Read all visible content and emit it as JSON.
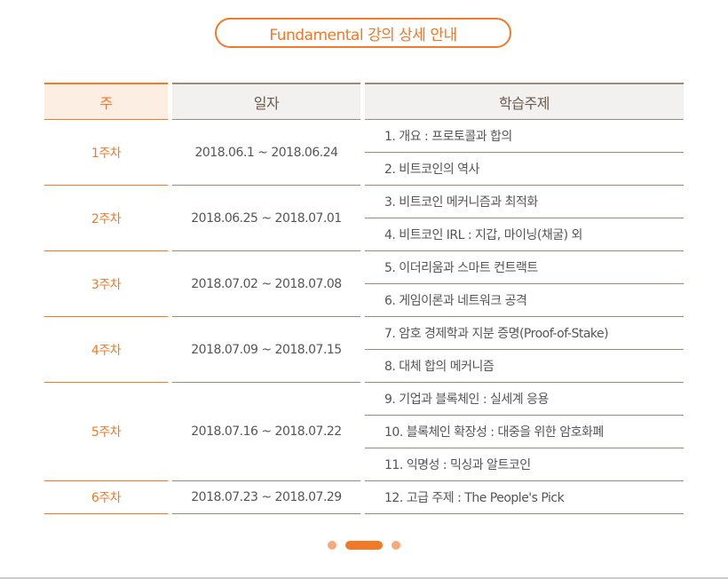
{
  "title": "Fundamental 강의 상세 안내",
  "table": {
    "headers": [
      "주",
      "일자",
      "학습주제"
    ],
    "weeks": [
      {
        "week": "1주차",
        "dates": "2018.06.1 ~ 2018.06.24",
        "topics": [
          "1. 개요 : 프로토콜과 합의",
          "2. 비트코인의 역사"
        ]
      },
      {
        "week": "2주차",
        "dates": "2018.06.25 ~ 2018.07.01",
        "topics": [
          "3. 비트코인 메커니즘과 최적화",
          "4. 비트코인 IRL : 지갑, 마이닝(채굴) 외"
        ]
      },
      {
        "week": "3주차",
        "dates": "2018.07.02 ~ 2018.07.08",
        "topics": [
          "5. 이더리움과 스마트 컨트랙트",
          "6. 게임이론과 네트워크 공격"
        ]
      },
      {
        "week": "4주차",
        "dates": "2018.07.09 ~ 2018.07.15",
        "topics": [
          "7. 암호 경제학과 지분 증명(Proof-of-Stake)",
          "8. 대체 합의 메커니즘"
        ]
      },
      {
        "week": "5주차",
        "dates": "2018.07.16 ~ 2018.07.22",
        "topics": [
          "9. 기업과 블록체인 : 실세계 응용",
          "10. 블록체인 확장성 : 대중을 위한 암호화폐",
          "11. 익명성 : 믹싱과 알트코인"
        ]
      },
      {
        "week": "6주차",
        "dates": "2018.07.23 ~ 2018.07.29",
        "topics": [
          "12. 고급 주제 : The People's Pick"
        ]
      }
    ]
  },
  "pagination": {
    "count": 3,
    "active": 2
  },
  "colors": {
    "accent": "#f07a28",
    "border": "#9b8a7c"
  }
}
